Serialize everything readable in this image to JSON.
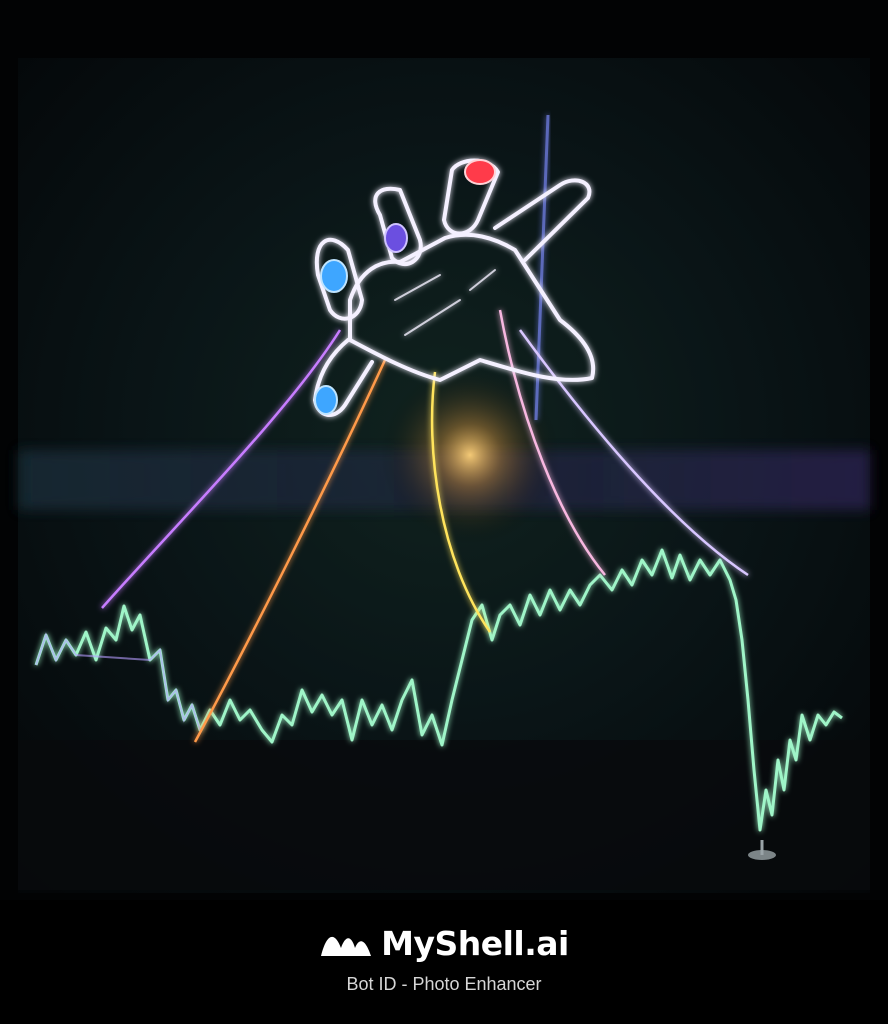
{
  "footer": {
    "brand_name": "MyShell.ai",
    "caption": "Bot ID - Photo Enhancer"
  },
  "artwork": {
    "subject-icon": "neon-hand-puppeteer-over-market-line-icon",
    "colors": {
      "background": "#050a0d",
      "chart_line": "#9ff5c8",
      "hand_outline": "#f4f0ff",
      "string_purple": "#c77dff",
      "string_orange": "#ff9a4a",
      "string_yellow": "#ffe45c",
      "string_pink": "#f7b7e0",
      "nail_blue": "#3ea6ff",
      "nail_violet": "#6b4fe0",
      "nail_red": "#ff3b4a",
      "glow": "#ffd27a"
    }
  },
  "brand_logo_icon": "wave-logo-icon"
}
